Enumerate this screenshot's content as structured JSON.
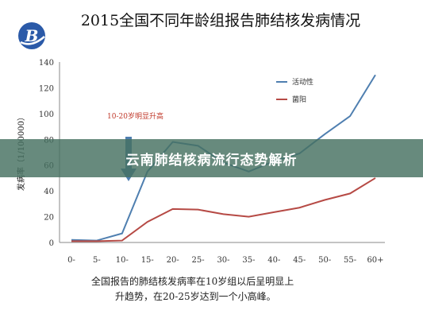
{
  "chart_data": {
    "type": "line",
    "title": "2015全国不同年龄组报告肺结核发病情况",
    "categories": [
      "0-",
      "5-",
      "10-",
      "15-",
      "20-",
      "25-",
      "30-",
      "35-",
      "40-",
      "45-",
      "50-",
      "55-",
      "60+"
    ],
    "series": [
      {
        "name": "活动性",
        "color": "#4f7fb0",
        "values": [
          2,
          1.5,
          7,
          55,
          78,
          75,
          62,
          55,
          63,
          69,
          84,
          98,
          130
        ]
      },
      {
        "name": "菌阳",
        "color": "#b64a45",
        "values": [
          1,
          1,
          1.5,
          16,
          26,
          25.5,
          22,
          20,
          23.5,
          27,
          33,
          38,
          50
        ]
      }
    ],
    "ylabel": "发病率（1/100000）",
    "xlabel": "",
    "ylim": [
      0,
      140
    ],
    "yticks": [
      0,
      20,
      40,
      60,
      80,
      100,
      120,
      140
    ],
    "grid": false,
    "legend_position": "top-right",
    "annotation": "10-20岁明显升高"
  },
  "caption": {
    "line1": "全国报告的肺结核发病率在10岁组以后呈明显上",
    "line2": "升趋势，在20-25岁达到一个小高峰。"
  },
  "banner": {
    "text": "云南肺结核病流行态势解析"
  },
  "logo": {
    "letter": "B",
    "color": "#2b5aa8"
  },
  "colors": {
    "arrow": "#4f7fb0",
    "banner": "#46705f"
  }
}
